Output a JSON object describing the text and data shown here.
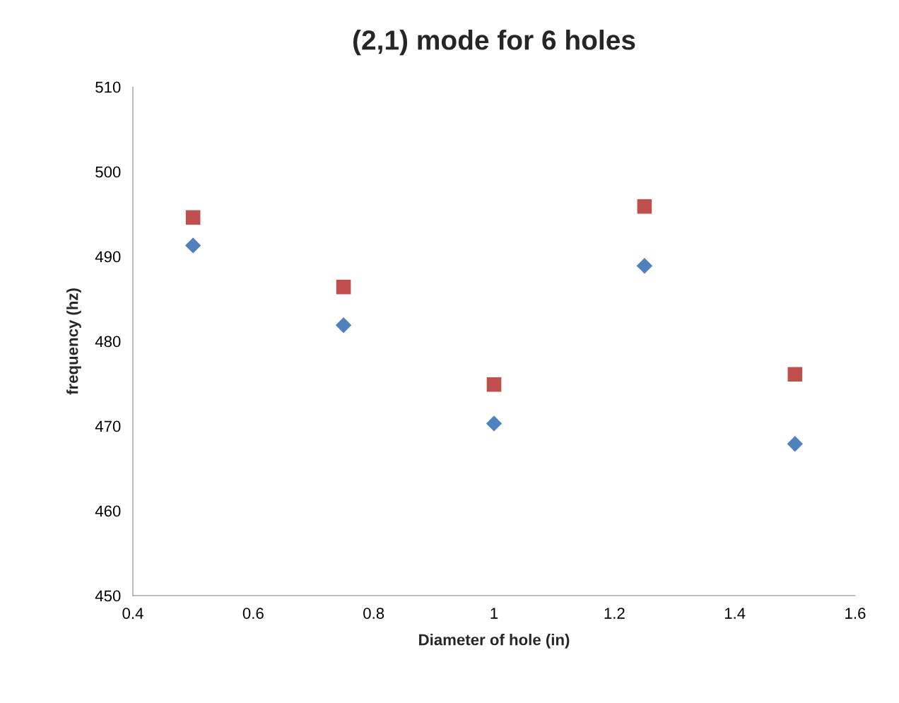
{
  "chart_data": {
    "type": "scatter",
    "title": "(2,1) mode for 6 holes",
    "xlabel": "Diameter of hole (in)",
    "ylabel": "frequency (hz)",
    "x": [
      0.5,
      0.75,
      1.0,
      1.25,
      1.5
    ],
    "series": [
      {
        "color": "#4f81bd",
        "marker": "diamond",
        "values": [
          491.3,
          481.9,
          470.3,
          488.9,
          467.9
        ]
      },
      {
        "color": "#c0504d",
        "marker": "square",
        "values": [
          494.6,
          486.4,
          474.9,
          495.9,
          476.1
        ]
      }
    ],
    "xlim": [
      0.4,
      1.6
    ],
    "xticks": [
      0.4,
      0.6,
      0.8,
      1,
      1.2,
      1.4,
      1.6
    ],
    "ylim": [
      450,
      510
    ],
    "yticks": [
      450,
      460,
      470,
      480,
      490,
      500,
      510
    ],
    "grid": false,
    "legend": false
  }
}
